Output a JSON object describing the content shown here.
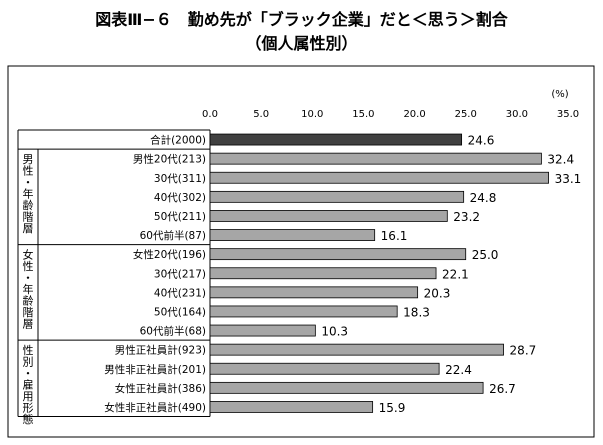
{
  "page": {
    "title": "図表Ⅲ−６　勤め先が「ブラック企業」だと＜思う＞割合",
    "subtitle": "（個人属性別）"
  },
  "chart_data": {
    "type": "bar",
    "orientation": "horizontal",
    "title": "図表Ⅲ−６　勤め先が「ブラック企業」だと＜思う＞割合",
    "subtitle": "（個人属性別）",
    "unit": "(%)",
    "xlim": [
      0,
      35
    ],
    "ticks": [
      "0.0",
      "5.0",
      "10.0",
      "15.0",
      "20.0",
      "25.0",
      "30.0",
      "35.0"
    ],
    "grid": false,
    "colors": {
      "total": "#404040",
      "bar": "#a6a6a6",
      "edge": "#000000"
    },
    "groups": [
      {
        "label": "",
        "start": 0,
        "end": 0
      },
      {
        "label": "男性・年齢階層",
        "start": 1,
        "end": 5
      },
      {
        "label": "女性・年齢階層",
        "start": 6,
        "end": 10
      },
      {
        "label": "性別・雇用形態",
        "start": 11,
        "end": 14
      }
    ],
    "categories": [
      "合計(2000)",
      "男性20代(213)",
      "30代(311)",
      "40代(302)",
      "50代(211)",
      "60代前半(87)",
      "女性20代(196)",
      "30代(217)",
      "40代(231)",
      "50代(164)",
      "60代前半(68)",
      "男性正社員計(923)",
      "男性非正社員計(201)",
      "女性正社員計(386)",
      "女性非正社員計(490)"
    ],
    "values": [
      24.6,
      32.4,
      33.1,
      24.8,
      23.2,
      16.1,
      25.0,
      22.1,
      20.3,
      18.3,
      10.3,
      28.7,
      22.4,
      26.7,
      15.9
    ],
    "value_labels": [
      "24.6",
      "32.4",
      "33.1",
      "24.8",
      "23.2",
      "16.1",
      "25.0",
      "22.1",
      "20.3",
      "18.3",
      "10.3",
      "28.7",
      "22.4",
      "26.7",
      "15.9"
    ]
  }
}
